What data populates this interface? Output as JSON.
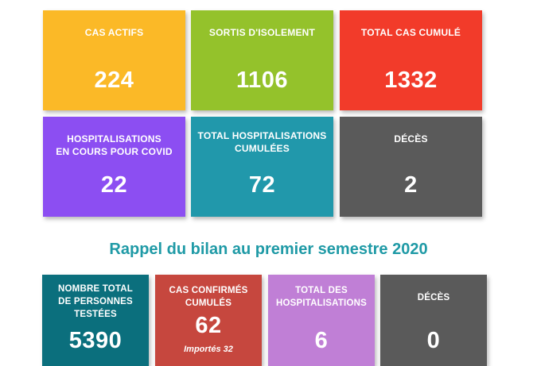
{
  "colors": {
    "orange": "#fbb927",
    "green": "#94c22b",
    "red": "#f23b2a",
    "purple": "#8c4ef2",
    "teal": "#2198ab",
    "gray": "#5a5a5a",
    "dark_teal": "#0b6f7d",
    "brick": "#c6473e",
    "lavender": "#c07fd6",
    "title": "#1f9aa6"
  },
  "top_cards": {
    "cas_actifs": {
      "label": "CAS ACTIFS",
      "value": "224"
    },
    "sortis_isolement": {
      "label": "SORTIS D'ISOLEMENT",
      "value": "1106"
    },
    "total_cas_cumule": {
      "label": "TOTAL CAS CUMULÉ",
      "value": "1332"
    },
    "hospitalisations_en_cours": {
      "label": "HOSPITALISATIONS\nEN COURS POUR COVID",
      "value": "22"
    },
    "total_hospitalisations_cumulees": {
      "label": "TOTAL HOSPITALISATIONS\nCUMULÉES",
      "value": "72"
    },
    "deces": {
      "label": "DÉCÈS",
      "value": "2"
    }
  },
  "section_title": "Rappel du bilan au premier semestre 2020",
  "bottom_cards": {
    "personnes_testees": {
      "label": "NOMBRE TOTAL\nDE PERSONNES\nTESTÉES",
      "value": "5390"
    },
    "cas_confirmes": {
      "label": "CAS CONFIRMÉS\nCUMULÉS",
      "value": "62",
      "note": "Importés 32"
    },
    "total_hospitalisations": {
      "label": "TOTAL DES\nHOSPITALISATIONS",
      "value": "6"
    },
    "deces": {
      "label": "DÉCÈS",
      "value": "0"
    }
  }
}
